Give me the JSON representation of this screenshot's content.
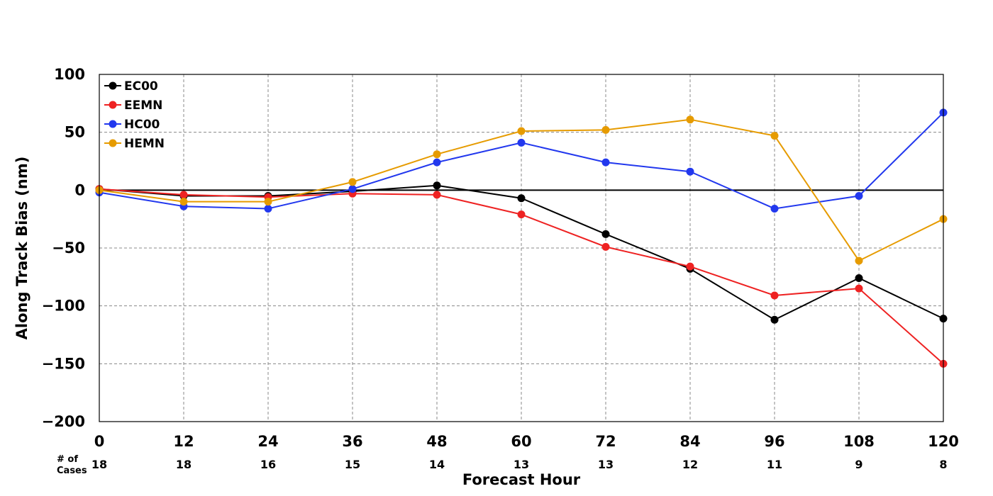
{
  "chart_data": {
    "type": "line",
    "xlabel": "Forecast Hour",
    "ylabel": "Along Track Bias (nm)",
    "x": [
      0,
      12,
      24,
      36,
      48,
      60,
      72,
      84,
      96,
      108,
      120
    ],
    "xlim": [
      0,
      120
    ],
    "ylim": [
      -200,
      100
    ],
    "yticks": [
      100,
      50,
      0,
      -50,
      -100,
      -150,
      -200
    ],
    "ytick_labels": [
      "100",
      "50",
      "0",
      "−50",
      "−100",
      "−150",
      "−200"
    ],
    "grid": true,
    "zero_line": true,
    "legend_position": "top-left",
    "cases_label": [
      "# of",
      "Cases"
    ],
    "cases": [
      "18",
      "18",
      "16",
      "15",
      "14",
      "13",
      "13",
      "12",
      "11",
      "9",
      "8"
    ],
    "series": [
      {
        "name": "EC00",
        "color": "#000000",
        "values": [
          1,
          -5,
          -5,
          -1,
          4,
          -7,
          -38,
          -68,
          -112,
          -76,
          -111
        ]
      },
      {
        "name": "EEMN",
        "color": "#ee2222",
        "values": [
          1,
          -4,
          -6,
          -3,
          -4,
          -21,
          -49,
          -66,
          -91,
          -85,
          -150
        ]
      },
      {
        "name": "HC00",
        "color": "#2238ee",
        "values": [
          -2,
          -14,
          -16,
          1,
          24,
          41,
          24,
          16,
          -16,
          -5,
          67
        ]
      },
      {
        "name": "HEMN",
        "color": "#e69b00",
        "values": [
          0,
          -10,
          -10,
          7,
          31,
          51,
          52,
          61,
          47,
          -61,
          -25
        ]
      }
    ]
  }
}
